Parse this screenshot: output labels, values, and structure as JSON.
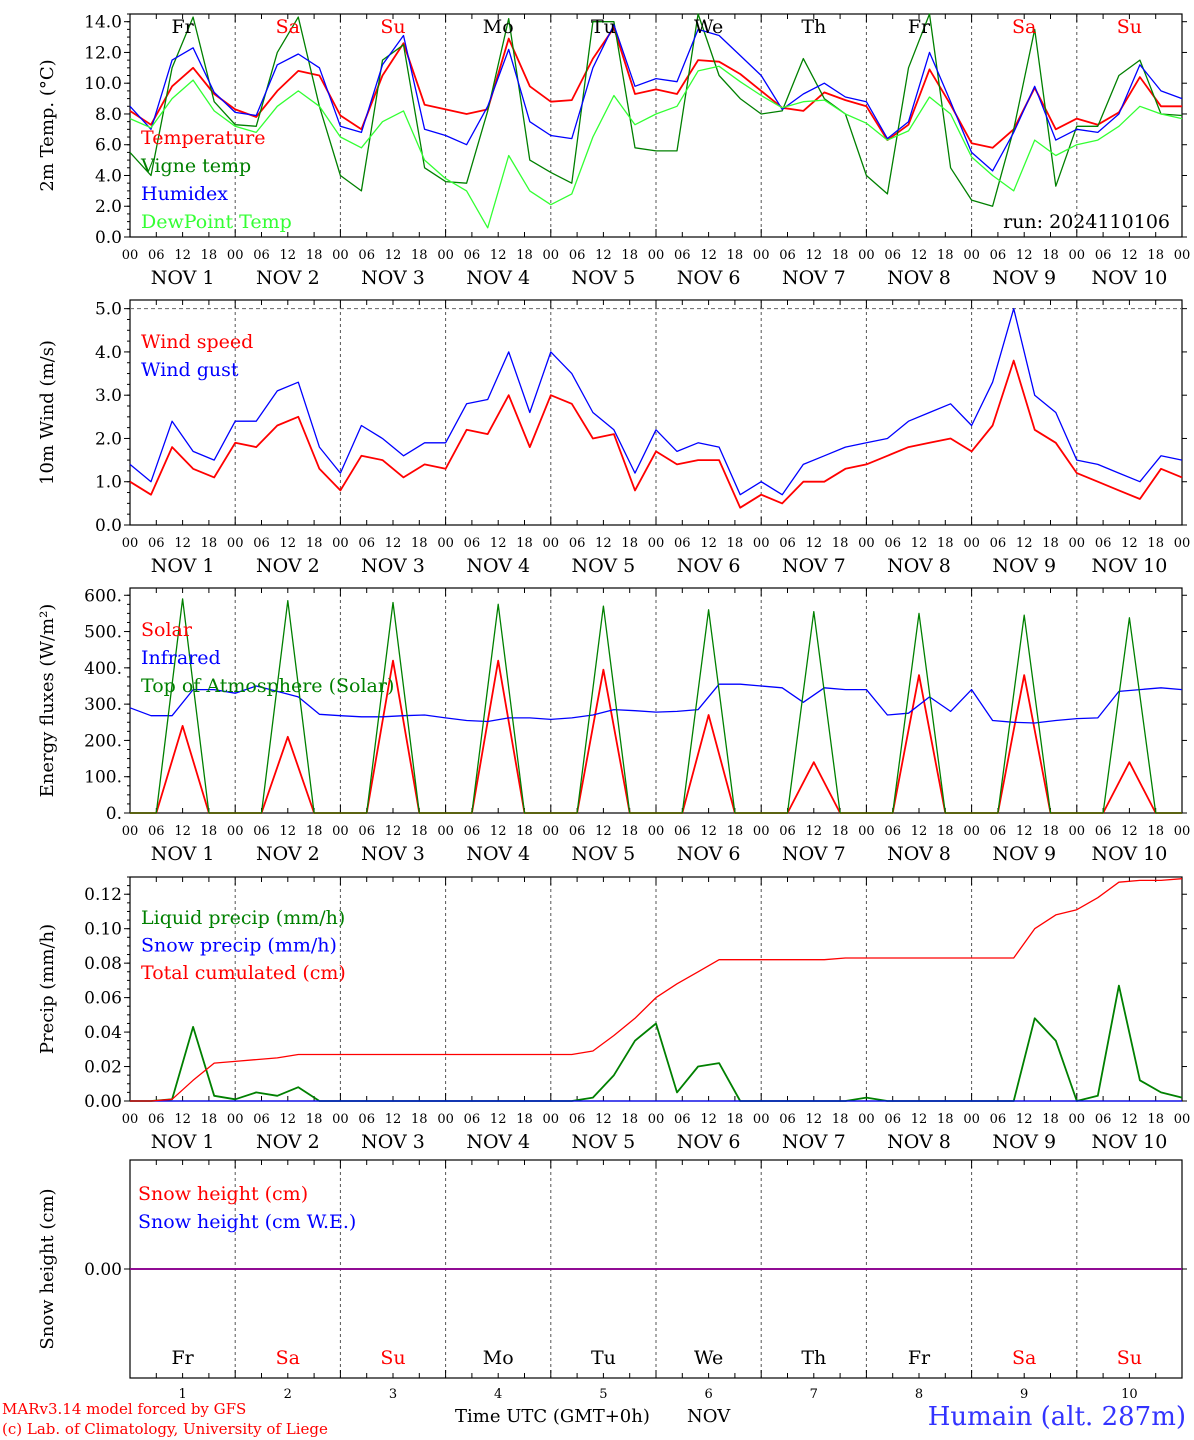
{
  "days": [
    "Fr",
    "Sa",
    "Su",
    "Mo",
    "Tu",
    "We",
    "Th",
    "Fr",
    "Sa",
    "Su"
  ],
  "day_colors": [
    "#000000",
    "#ff0000",
    "#ff0000",
    "#000000",
    "#000000",
    "#000000",
    "#000000",
    "#000000",
    "#ff0000",
    "#ff0000"
  ],
  "date_labels": [
    "NOV  1",
    "NOV  2",
    "NOV  3",
    "NOV  4",
    "NOV  5",
    "NOV  6",
    "NOV  7",
    "NOV  8",
    "NOV  9",
    "NOV 10"
  ],
  "hour_labels": [
    "00",
    "06",
    "12",
    "18"
  ],
  "last_hour_label": "00",
  "bottom_day_numbers": [
    "1",
    "2",
    "3",
    "4",
    "5",
    "6",
    "7",
    "8",
    "9",
    "10"
  ],
  "footer": {
    "model_line": "MARv3.14 model forced by GFS",
    "credit_line": "(c) Lab. of Climatology, University of Liege",
    "time_axis": "Time UTC (GMT+0h)",
    "month": "NOV",
    "station": "Humain (alt. 287m)"
  },
  "chart_data": [
    {
      "type": "line",
      "ylabel": "2m Temp. (°C)",
      "ylim": [
        0,
        14.5
      ],
      "yticks": [
        "0.0",
        "2.0",
        "4.0",
        "6.0",
        "8.0",
        "10.0",
        "12.0",
        "14.0"
      ],
      "ytick_values": [
        0,
        2,
        4,
        6,
        8,
        10,
        12,
        14
      ],
      "annotation": "run: 2024110106",
      "x": "hours from 2024-11-01 00 UTC, 6-hourly",
      "series": [
        {
          "name": "Temperature",
          "color": "#ff0000",
          "values": [
            8.2,
            7.3,
            9.8,
            11.0,
            9.3,
            8.3,
            7.8,
            9.5,
            10.8,
            10.5,
            7.9,
            7.0,
            10.5,
            12.6,
            8.6,
            8.3,
            8.0,
            8.3,
            12.9,
            9.8,
            8.8,
            8.9,
            11.6,
            13.6,
            9.3,
            9.6,
            9.3,
            11.5,
            11.4,
            10.6,
            9.5,
            8.4,
            8.2,
            9.4,
            8.9,
            8.5,
            6.3,
            7.3,
            10.9,
            8.6,
            6.1,
            5.8,
            7.0,
            9.7,
            7.0,
            7.7,
            7.3,
            8.1,
            10.4,
            8.5,
            8.5
          ]
        },
        {
          "name": "Vigne temp",
          "color": "#008000",
          "values": [
            5.5,
            4.0,
            11.0,
            14.3,
            8.8,
            7.3,
            7.2,
            12.0,
            14.3,
            8.5,
            4.0,
            3.0,
            11.5,
            12.5,
            4.5,
            3.6,
            3.5,
            8.2,
            14.2,
            5.0,
            4.2,
            3.5,
            14.0,
            14.0,
            5.8,
            5.6,
            5.6,
            14.5,
            10.5,
            9.0,
            8.0,
            8.2,
            11.6,
            9.0,
            8.0,
            4.0,
            2.8,
            11.0,
            14.5,
            4.5,
            2.4,
            2.0,
            7.0,
            13.5,
            3.3,
            7.2,
            7.2,
            10.5,
            11.5,
            8.0,
            7.9
          ]
        },
        {
          "name": "Humidex",
          "color": "#0000ff",
          "values": [
            8.5,
            7.0,
            11.5,
            12.3,
            9.4,
            8.1,
            7.9,
            11.2,
            11.9,
            11.0,
            7.2,
            6.8,
            11.2,
            13.1,
            7.0,
            6.6,
            6.0,
            8.5,
            12.2,
            7.5,
            6.6,
            6.4,
            11.0,
            13.8,
            9.8,
            10.3,
            10.1,
            13.5,
            13.1,
            11.8,
            10.5,
            8.3,
            9.3,
            10.0,
            9.1,
            8.8,
            6.4,
            7.5,
            12.0,
            8.8,
            5.5,
            4.3,
            6.8,
            9.8,
            6.3,
            7.0,
            6.8,
            8.0,
            11.2,
            9.5,
            9.0
          ]
        },
        {
          "name": "DewPoint Temp",
          "color": "#33ff33",
          "values": [
            7.7,
            7.1,
            9.0,
            10.2,
            8.2,
            7.2,
            6.8,
            8.5,
            9.5,
            8.5,
            6.5,
            5.8,
            7.5,
            8.2,
            5.0,
            3.8,
            3.0,
            0.6,
            5.3,
            3.0,
            2.1,
            2.8,
            6.5,
            9.2,
            7.3,
            8.0,
            8.5,
            10.8,
            11.1,
            10.1,
            9.2,
            8.4,
            8.8,
            8.9,
            8.0,
            7.4,
            6.3,
            6.9,
            9.1,
            8.0,
            5.2,
            4.0,
            3.0,
            6.3,
            5.3,
            6.0,
            6.3,
            7.2,
            8.5,
            8.0,
            7.7
          ]
        }
      ]
    },
    {
      "type": "line",
      "ylabel": "10m Wind (m/s)",
      "ylim": [
        0,
        5.2
      ],
      "yticks": [
        "0.0",
        "1.0",
        "2.0",
        "3.0",
        "4.0",
        "5.0"
      ],
      "ytick_values": [
        0,
        1,
        2,
        3,
        4,
        5
      ],
      "dashed_line": 5.0,
      "series": [
        {
          "name": "Wind speed",
          "color": "#ff0000",
          "values": [
            1.0,
            0.7,
            1.8,
            1.3,
            1.1,
            1.9,
            1.8,
            2.3,
            2.5,
            1.3,
            0.8,
            1.6,
            1.5,
            1.1,
            1.4,
            1.3,
            2.2,
            2.1,
            3.0,
            1.8,
            3.0,
            2.8,
            2.0,
            2.1,
            0.8,
            1.7,
            1.4,
            1.5,
            1.5,
            0.4,
            0.7,
            0.5,
            1.0,
            1.0,
            1.3,
            1.4,
            1.6,
            1.8,
            1.9,
            2.0,
            1.7,
            2.3,
            3.8,
            2.2,
            1.9,
            1.2,
            1.0,
            0.8,
            0.6,
            1.3,
            1.1
          ]
        },
        {
          "name": "Wind gust",
          "color": "#0000ff",
          "values": [
            1.4,
            1.0,
            2.4,
            1.7,
            1.5,
            2.4,
            2.4,
            3.1,
            3.3,
            1.8,
            1.2,
            2.3,
            2.0,
            1.6,
            1.9,
            1.9,
            2.8,
            2.9,
            4.0,
            2.6,
            4.0,
            3.5,
            2.6,
            2.2,
            1.2,
            2.2,
            1.7,
            1.9,
            1.8,
            0.7,
            1.0,
            0.7,
            1.4,
            1.6,
            1.8,
            1.9,
            2.0,
            2.4,
            2.6,
            2.8,
            2.3,
            3.3,
            5.0,
            3.0,
            2.6,
            1.5,
            1.4,
            1.2,
            1.0,
            1.6,
            1.5
          ]
        }
      ]
    },
    {
      "type": "line",
      "ylabel": "Energy fluxes (W/m²)",
      "ylim": [
        0,
        620
      ],
      "yticks": [
        "0.",
        "100.",
        "200.",
        "300.",
        "400.",
        "500.",
        "600."
      ],
      "ytick_values": [
        0,
        100,
        200,
        300,
        400,
        500,
        600
      ],
      "series": [
        {
          "name": "Solar",
          "color": "#ff0000",
          "values": [
            0,
            0,
            240,
            0,
            0,
            0,
            210,
            0,
            0,
            0,
            420,
            0,
            0,
            0,
            420,
            0,
            0,
            0,
            395,
            0,
            0,
            0,
            270,
            0,
            0,
            0,
            140,
            0,
            0,
            0,
            380,
            0,
            0,
            0,
            380,
            0,
            0,
            0,
            140,
            0,
            0
          ]
        },
        {
          "name": "Infrared",
          "color": "#0000ff",
          "values": [
            290,
            268,
            268,
            340,
            340,
            330,
            350,
            335,
            320,
            272,
            268,
            265,
            265,
            268,
            270,
            262,
            255,
            252,
            262,
            262,
            258,
            262,
            270,
            285,
            282,
            278,
            280,
            285,
            355,
            355,
            350,
            345,
            305,
            345,
            340,
            340,
            270,
            275,
            320,
            280,
            340,
            255,
            250,
            248,
            255,
            260,
            262,
            335,
            340,
            345,
            340
          ]
        },
        {
          "name": "Top of Atmosphere (Solar)",
          "color": "#008000",
          "values": [
            0,
            0,
            590,
            0,
            0,
            0,
            585,
            0,
            0,
            0,
            580,
            0,
            0,
            0,
            575,
            0,
            0,
            0,
            570,
            0,
            0,
            0,
            560,
            0,
            0,
            0,
            555,
            0,
            0,
            0,
            550,
            0,
            0,
            0,
            545,
            0,
            0,
            0,
            538,
            0,
            0
          ]
        }
      ]
    },
    {
      "type": "line",
      "ylabel": "Precip (mm/h)",
      "ylim": [
        0,
        0.13
      ],
      "yticks": [
        "0.00",
        "0.02",
        "0.04",
        "0.06",
        "0.08",
        "0.10",
        "0.12"
      ],
      "ytick_values": [
        0,
        0.02,
        0.04,
        0.06,
        0.08,
        0.1,
        0.12
      ],
      "series": [
        {
          "name": "Liquid precip (mm/h)",
          "color": "#008000",
          "values": [
            0,
            0,
            0.001,
            0.043,
            0.003,
            0.001,
            0.005,
            0.003,
            0.008,
            0,
            0,
            0,
            0,
            0,
            0,
            0,
            0,
            0,
            0,
            0,
            0,
            0,
            0.002,
            0.015,
            0.035,
            0.045,
            0.005,
            0.02,
            0.022,
            0,
            0,
            0,
            0,
            0,
            0,
            0.002,
            0,
            0,
            0,
            0,
            0,
            0,
            0,
            0.048,
            0.035,
            0,
            0.003,
            0.067,
            0.012,
            0.005,
            0.002
          ]
        },
        {
          "name": "Snow precip (mm/h)",
          "color": "#0000ff",
          "values": [
            0,
            0,
            0,
            0,
            0,
            0,
            0,
            0,
            0,
            0,
            0,
            0,
            0,
            0,
            0,
            0,
            0,
            0,
            0,
            0,
            0,
            0,
            0,
            0,
            0,
            0,
            0,
            0,
            0,
            0,
            0,
            0,
            0,
            0,
            0,
            0,
            0,
            0,
            0,
            0,
            0,
            0,
            0,
            0,
            0,
            0,
            0,
            0,
            0,
            0,
            0
          ]
        },
        {
          "name": "Total cumulated (cm)",
          "color": "#ff0000",
          "values": [
            0,
            0,
            0.001,
            0.012,
            0.022,
            0.023,
            0.024,
            0.025,
            0.027,
            0.027,
            0.027,
            0.027,
            0.027,
            0.027,
            0.027,
            0.027,
            0.027,
            0.027,
            0.027,
            0.027,
            0.027,
            0.027,
            0.029,
            0.038,
            0.048,
            0.06,
            0.068,
            0.075,
            0.082,
            0.082,
            0.082,
            0.082,
            0.082,
            0.082,
            0.083,
            0.083,
            0.083,
            0.083,
            0.083,
            0.083,
            0.083,
            0.083,
            0.083,
            0.1,
            0.108,
            0.111,
            0.118,
            0.127,
            0.128,
            0.128,
            0.129
          ]
        }
      ]
    },
    {
      "type": "line",
      "ylabel": "Snow height (cm)",
      "ylim": [
        -1,
        1
      ],
      "yticks": [
        "0.00"
      ],
      "ytick_values": [
        0
      ],
      "series": [
        {
          "name": "Snow height (cm)",
          "color": "#ff0000",
          "values": [
            0,
            0
          ]
        },
        {
          "name": "Snow height (cm W.E.)",
          "color": "#0000ff",
          "values": [
            0,
            0
          ]
        }
      ]
    }
  ]
}
